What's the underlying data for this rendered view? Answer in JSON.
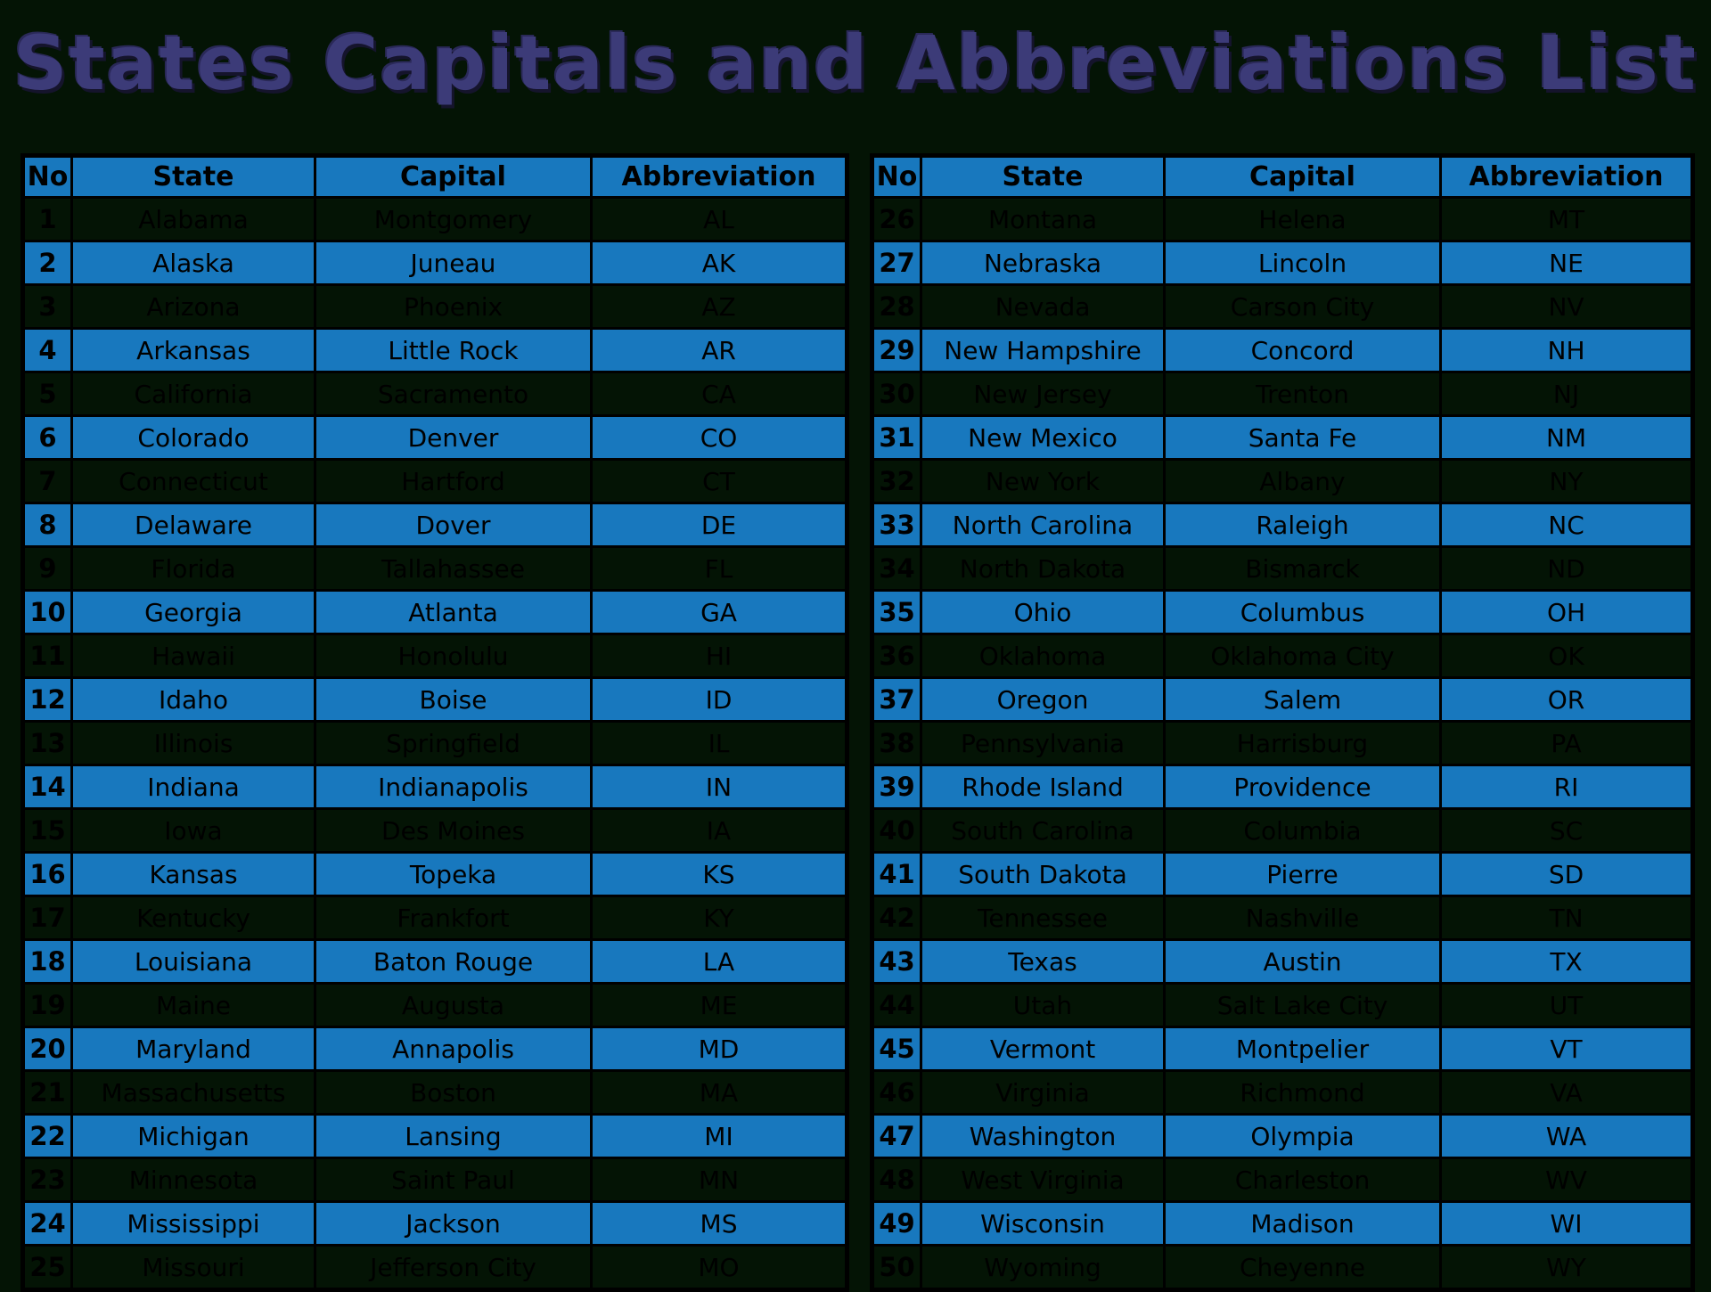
{
  "title": "States Capitals and Abbreviations List",
  "colors": {
    "page_background": "#041405",
    "row_highlight_blue": "#1878be",
    "header_blue": "#1878be",
    "title_purple": "#3c3b78",
    "text_black": "#000000",
    "border_black": "#000000"
  },
  "tables": [
    {
      "headers": [
        "No",
        "State",
        "Capital",
        "Abbreviation"
      ],
      "rows": [
        {
          "no": "1",
          "state": "Alabama",
          "capital": "Montgomery",
          "abbr": "AL",
          "highlighted": false
        },
        {
          "no": "2",
          "state": "Alaska",
          "capital": "Juneau",
          "abbr": "AK",
          "highlighted": true
        },
        {
          "no": "3",
          "state": "Arizona",
          "capital": "Phoenix",
          "abbr": "AZ",
          "highlighted": false
        },
        {
          "no": "4",
          "state": "Arkansas",
          "capital": "Little Rock",
          "abbr": "AR",
          "highlighted": true
        },
        {
          "no": "5",
          "state": "California",
          "capital": "Sacramento",
          "abbr": "CA",
          "highlighted": false
        },
        {
          "no": "6",
          "state": "Colorado",
          "capital": "Denver",
          "abbr": "CO",
          "highlighted": true
        },
        {
          "no": "7",
          "state": "Connecticut",
          "capital": "Hartford",
          "abbr": "CT",
          "highlighted": false
        },
        {
          "no": "8",
          "state": "Delaware",
          "capital": "Dover",
          "abbr": "DE",
          "highlighted": true
        },
        {
          "no": "9",
          "state": "Florida",
          "capital": "Tallahassee",
          "abbr": "FL",
          "highlighted": false
        },
        {
          "no": "10",
          "state": "Georgia",
          "capital": "Atlanta",
          "abbr": "GA",
          "highlighted": true
        },
        {
          "no": "11",
          "state": "Hawaii",
          "capital": "Honolulu",
          "abbr": "HI",
          "highlighted": false
        },
        {
          "no": "12",
          "state": "Idaho",
          "capital": "Boise",
          "abbr": "ID",
          "highlighted": true
        },
        {
          "no": "13",
          "state": "Illinois",
          "capital": "Springfield",
          "abbr": "IL",
          "highlighted": false
        },
        {
          "no": "14",
          "state": "Indiana",
          "capital": "Indianapolis",
          "abbr": "IN",
          "highlighted": true
        },
        {
          "no": "15",
          "state": "Iowa",
          "capital": "Des Moines",
          "abbr": "IA",
          "highlighted": false
        },
        {
          "no": "16",
          "state": "Kansas",
          "capital": "Topeka",
          "abbr": "KS",
          "highlighted": true
        },
        {
          "no": "17",
          "state": "Kentucky",
          "capital": "Frankfort",
          "abbr": "KY",
          "highlighted": false
        },
        {
          "no": "18",
          "state": "Louisiana",
          "capital": "Baton Rouge",
          "abbr": "LA",
          "highlighted": true
        },
        {
          "no": "19",
          "state": "Maine",
          "capital": "Augusta",
          "abbr": "ME",
          "highlighted": false
        },
        {
          "no": "20",
          "state": "Maryland",
          "capital": "Annapolis",
          "abbr": "MD",
          "highlighted": true
        },
        {
          "no": "21",
          "state": "Massachusetts",
          "capital": "Boston",
          "abbr": "MA",
          "highlighted": false
        },
        {
          "no": "22",
          "state": "Michigan",
          "capital": "Lansing",
          "abbr": "MI",
          "highlighted": true
        },
        {
          "no": "23",
          "state": "Minnesota",
          "capital": "Saint Paul",
          "abbr": "MN",
          "highlighted": false
        },
        {
          "no": "24",
          "state": "Mississippi",
          "capital": "Jackson",
          "abbr": "MS",
          "highlighted": true
        },
        {
          "no": "25",
          "state": "Missouri",
          "capital": "Jefferson City",
          "abbr": "MO",
          "highlighted": false
        }
      ]
    },
    {
      "headers": [
        "No",
        "State",
        "Capital",
        "Abbreviation"
      ],
      "rows": [
        {
          "no": "26",
          "state": "Montana",
          "capital": "Helena",
          "abbr": "MT",
          "highlighted": false
        },
        {
          "no": "27",
          "state": "Nebraska",
          "capital": "Lincoln",
          "abbr": "NE",
          "highlighted": true
        },
        {
          "no": "28",
          "state": "Nevada",
          "capital": "Carson City",
          "abbr": "NV",
          "highlighted": false
        },
        {
          "no": "29",
          "state": "New Hampshire",
          "capital": "Concord",
          "abbr": "NH",
          "highlighted": true
        },
        {
          "no": "30",
          "state": "New Jersey",
          "capital": "Trenton",
          "abbr": "NJ",
          "highlighted": false
        },
        {
          "no": "31",
          "state": "New Mexico",
          "capital": "Santa Fe",
          "abbr": "NM",
          "highlighted": true
        },
        {
          "no": "32",
          "state": "New York",
          "capital": "Albany",
          "abbr": "NY",
          "highlighted": false
        },
        {
          "no": "33",
          "state": "North Carolina",
          "capital": "Raleigh",
          "abbr": "NC",
          "highlighted": true
        },
        {
          "no": "34",
          "state": "North Dakota",
          "capital": "Bismarck",
          "abbr": "ND",
          "highlighted": false
        },
        {
          "no": "35",
          "state": "Ohio",
          "capital": "Columbus",
          "abbr": "OH",
          "highlighted": true
        },
        {
          "no": "36",
          "state": "Oklahoma",
          "capital": "Oklahoma City",
          "abbr": "OK",
          "highlighted": false
        },
        {
          "no": "37",
          "state": "Oregon",
          "capital": "Salem",
          "abbr": "OR",
          "highlighted": true
        },
        {
          "no": "38",
          "state": "Pennsylvania",
          "capital": "Harrisburg",
          "abbr": "PA",
          "highlighted": false
        },
        {
          "no": "39",
          "state": "Rhode Island",
          "capital": "Providence",
          "abbr": "RI",
          "highlighted": true
        },
        {
          "no": "40",
          "state": "South Carolina",
          "capital": "Columbia",
          "abbr": "SC",
          "highlighted": false
        },
        {
          "no": "41",
          "state": "South Dakota",
          "capital": "Pierre",
          "abbr": "SD",
          "highlighted": true
        },
        {
          "no": "42",
          "state": "Tennessee",
          "capital": "Nashville",
          "abbr": "TN",
          "highlighted": false
        },
        {
          "no": "43",
          "state": "Texas",
          "capital": "Austin",
          "abbr": "TX",
          "highlighted": true
        },
        {
          "no": "44",
          "state": "Utah",
          "capital": "Salt Lake City",
          "abbr": "UT",
          "highlighted": false
        },
        {
          "no": "45",
          "state": "Vermont",
          "capital": "Montpelier",
          "abbr": "VT",
          "highlighted": true
        },
        {
          "no": "46",
          "state": "Virginia",
          "capital": "Richmond",
          "abbr": "VA",
          "highlighted": false
        },
        {
          "no": "47",
          "state": "Washington",
          "capital": "Olympia",
          "abbr": "WA",
          "highlighted": true
        },
        {
          "no": "48",
          "state": "West Virginia",
          "capital": "Charleston",
          "abbr": "WV",
          "highlighted": false
        },
        {
          "no": "49",
          "state": "Wisconsin",
          "capital": "Madison",
          "abbr": "WI",
          "highlighted": true
        },
        {
          "no": "50",
          "state": "Wyoming",
          "capital": "Cheyenne",
          "abbr": "WY",
          "highlighted": false
        }
      ]
    }
  ]
}
